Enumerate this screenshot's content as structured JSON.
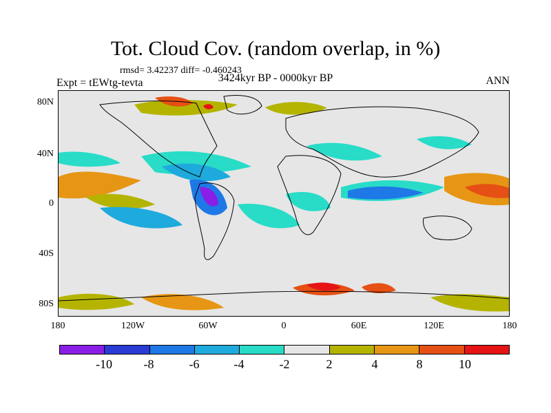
{
  "title": "Tot. Cloud Cov. (random overlap, in %)",
  "stats": "rmsd= 3.42237 diff= -0.460243",
  "subtitle": "3424kyr BP - 0000kyr BP",
  "experiment": "Expt = tEWtg-tevta",
  "season": "ANN",
  "lat_labels": [
    "80N",
    "40N",
    "0",
    "40S",
    "80S"
  ],
  "lon_labels": [
    "180",
    "120W",
    "60W",
    "0",
    "60E",
    "120E",
    "180"
  ],
  "colorbar": {
    "colors": [
      "#8a1ee6",
      "#2a3bd6",
      "#1e78e6",
      "#1eaadc",
      "#28dcc8",
      "#e6e6e6",
      "#b4b400",
      "#e69614",
      "#e65014",
      "#e61414"
    ],
    "labels": [
      "-10",
      "-8",
      "-6",
      "-4",
      "-2",
      "2",
      "4",
      "8",
      "10"
    ]
  }
}
